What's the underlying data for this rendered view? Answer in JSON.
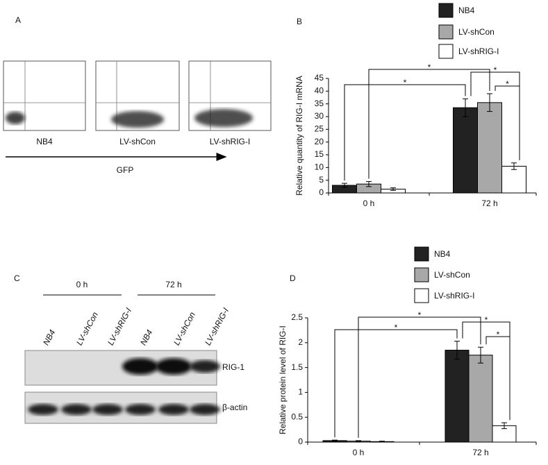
{
  "panel_labels": [
    "A",
    "B",
    "C",
    "D"
  ],
  "flow": {
    "samples": [
      "NB4",
      "LV-shCon",
      "LV-shRIG-I"
    ],
    "axis_label": "GFP"
  },
  "blot": {
    "timepoints": [
      "0 h",
      "72 h"
    ],
    "lanes": [
      "NB4",
      "LV-shCon",
      "LV-shRIG-I",
      "NB4",
      "LV-shCon",
      "LV-shRIG-I"
    ],
    "bands": [
      "RIG-1",
      "β-actin"
    ]
  },
  "chart_data": [
    {
      "type": "bar",
      "y_label": "Relative quantity of RIG-I mRNA",
      "categories": [
        "0 h",
        "72 h"
      ],
      "series": [
        {
          "name": "NB4",
          "color": "#222222",
          "values": [
            3,
            33.5
          ],
          "errors": [
            0.8,
            3.5
          ]
        },
        {
          "name": "LV-shCon",
          "color": "#a8a8a8",
          "values": [
            3.5,
            35.5
          ],
          "errors": [
            1,
            3.5
          ]
        },
        {
          "name": "LV-shRIG-I",
          "color": "#ffffff",
          "values": [
            1.5,
            10.5
          ],
          "errors": [
            0.5,
            1.3
          ]
        }
      ],
      "ylim": [
        0,
        45
      ],
      "yticks": [
        0,
        5,
        10,
        15,
        20,
        25,
        30,
        35,
        40,
        45
      ],
      "annotations": [
        "*",
        "*",
        "*",
        "*"
      ]
    },
    {
      "type": "bar",
      "y_label": "Relative  protein level of RIG-I",
      "categories": [
        "0 h",
        "72 h"
      ],
      "series": [
        {
          "name": "NB4",
          "color": "#222222",
          "values": [
            0.03,
            1.85
          ],
          "errors": [
            0.01,
            0.18
          ]
        },
        {
          "name": "LV-shCon",
          "color": "#a8a8a8",
          "values": [
            0.02,
            1.75
          ],
          "errors": [
            0.01,
            0.16
          ]
        },
        {
          "name": "LV-shRIG-I",
          "color": "#ffffff",
          "values": [
            0.01,
            0.33
          ],
          "errors": [
            0.01,
            0.06
          ]
        }
      ],
      "ylim": [
        0,
        2.5
      ],
      "yticks": [
        0,
        0.5,
        1,
        1.5,
        2,
        2.5
      ],
      "annotations": [
        "*",
        "*",
        "*",
        "*"
      ]
    }
  ]
}
